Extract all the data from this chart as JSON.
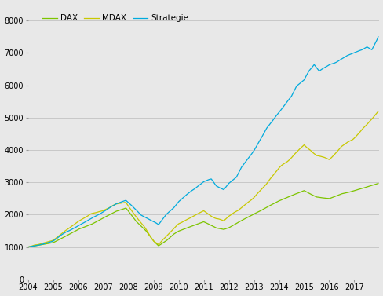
{
  "ylim": [
    0,
    8500
  ],
  "yticks": [
    0,
    1000,
    2000,
    3000,
    4000,
    5000,
    6000,
    7000,
    8000
  ],
  "xtick_years": [
    2004,
    2005,
    2006,
    2007,
    2008,
    2009,
    2010,
    2011,
    2012,
    2013,
    2014,
    2015,
    2016,
    2017
  ],
  "dax_color": "#7dc400",
  "mdax_color": "#c8c800",
  "strategie_color": "#00aadd",
  "background_color": "#e8e8e8",
  "plot_background": "#e8e8e8",
  "legend_labels": [
    "DAX",
    "MDAX",
    "Strategie"
  ],
  "grid_color": "#c8c8c8",
  "linewidth": 0.9,
  "dax_waypoints": [
    [
      2004.0,
      1000
    ],
    [
      2004.5,
      1080
    ],
    [
      2005.0,
      1150
    ],
    [
      2005.5,
      1350
    ],
    [
      2006.0,
      1550
    ],
    [
      2006.5,
      1700
    ],
    [
      2007.0,
      1900
    ],
    [
      2007.5,
      2100
    ],
    [
      2007.9,
      2200
    ],
    [
      2008.3,
      1800
    ],
    [
      2008.7,
      1500
    ],
    [
      2009.0,
      1200
    ],
    [
      2009.2,
      1050
    ],
    [
      2009.5,
      1200
    ],
    [
      2009.8,
      1400
    ],
    [
      2010.0,
      1500
    ],
    [
      2010.5,
      1650
    ],
    [
      2011.0,
      1800
    ],
    [
      2011.5,
      1600
    ],
    [
      2011.8,
      1550
    ],
    [
      2012.0,
      1600
    ],
    [
      2012.5,
      1800
    ],
    [
      2013.0,
      2000
    ],
    [
      2013.5,
      2200
    ],
    [
      2014.0,
      2400
    ],
    [
      2014.5,
      2550
    ],
    [
      2015.0,
      2700
    ],
    [
      2015.5,
      2500
    ],
    [
      2016.0,
      2450
    ],
    [
      2016.5,
      2600
    ],
    [
      2017.0,
      2700
    ],
    [
      2017.5,
      2800
    ],
    [
      2017.95,
      2900
    ]
  ],
  "mdax_waypoints": [
    [
      2004.0,
      1000
    ],
    [
      2004.5,
      1100
    ],
    [
      2005.0,
      1250
    ],
    [
      2005.5,
      1500
    ],
    [
      2006.0,
      1750
    ],
    [
      2006.5,
      1950
    ],
    [
      2007.0,
      2100
    ],
    [
      2007.5,
      2300
    ],
    [
      2007.9,
      2350
    ],
    [
      2008.3,
      1900
    ],
    [
      2008.7,
      1500
    ],
    [
      2009.0,
      1150
    ],
    [
      2009.2,
      1050
    ],
    [
      2009.5,
      1300
    ],
    [
      2009.8,
      1550
    ],
    [
      2010.0,
      1700
    ],
    [
      2010.5,
      1900
    ],
    [
      2011.0,
      2100
    ],
    [
      2011.5,
      1850
    ],
    [
      2011.8,
      1750
    ],
    [
      2012.0,
      1900
    ],
    [
      2012.5,
      2200
    ],
    [
      2013.0,
      2500
    ],
    [
      2013.5,
      2900
    ],
    [
      2014.0,
      3400
    ],
    [
      2014.5,
      3700
    ],
    [
      2015.0,
      4100
    ],
    [
      2015.5,
      3700
    ],
    [
      2016.0,
      3600
    ],
    [
      2016.5,
      4000
    ],
    [
      2017.0,
      4300
    ],
    [
      2017.5,
      4700
    ],
    [
      2017.95,
      5100
    ]
  ],
  "strat_waypoints": [
    [
      2004.0,
      1000
    ],
    [
      2004.5,
      1100
    ],
    [
      2005.0,
      1200
    ],
    [
      2005.5,
      1500
    ],
    [
      2006.0,
      1700
    ],
    [
      2006.5,
      1900
    ],
    [
      2007.0,
      2100
    ],
    [
      2007.5,
      2350
    ],
    [
      2007.9,
      2450
    ],
    [
      2008.1,
      2300
    ],
    [
      2008.5,
      2000
    ],
    [
      2009.0,
      1800
    ],
    [
      2009.2,
      1700
    ],
    [
      2009.5,
      2000
    ],
    [
      2009.8,
      2200
    ],
    [
      2010.0,
      2400
    ],
    [
      2010.3,
      2600
    ],
    [
      2010.7,
      2800
    ],
    [
      2011.0,
      3000
    ],
    [
      2011.3,
      3100
    ],
    [
      2011.5,
      2900
    ],
    [
      2011.8,
      2800
    ],
    [
      2012.0,
      3000
    ],
    [
      2012.3,
      3200
    ],
    [
      2012.5,
      3500
    ],
    [
      2012.8,
      3800
    ],
    [
      2013.0,
      4000
    ],
    [
      2013.3,
      4400
    ],
    [
      2013.5,
      4700
    ],
    [
      2013.8,
      5000
    ],
    [
      2014.0,
      5200
    ],
    [
      2014.3,
      5500
    ],
    [
      2014.5,
      5700
    ],
    [
      2014.7,
      6000
    ],
    [
      2015.0,
      6200
    ],
    [
      2015.2,
      6500
    ],
    [
      2015.4,
      6700
    ],
    [
      2015.6,
      6500
    ],
    [
      2015.8,
      6600
    ],
    [
      2016.0,
      6700
    ],
    [
      2016.3,
      6800
    ],
    [
      2016.5,
      6900
    ],
    [
      2016.7,
      7000
    ],
    [
      2017.0,
      7100
    ],
    [
      2017.3,
      7200
    ],
    [
      2017.5,
      7300
    ],
    [
      2017.7,
      7200
    ],
    [
      2017.9,
      7500
    ],
    [
      2017.95,
      7600
    ]
  ]
}
